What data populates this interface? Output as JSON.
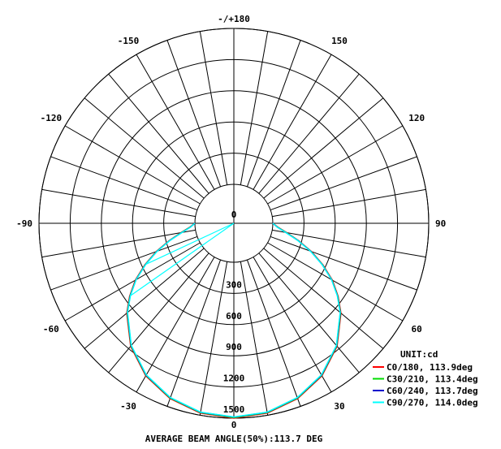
{
  "chart_data": {
    "type": "polar",
    "unit_label": "UNIT:cd",
    "bottom_caption": "AVERAGE BEAM ANGLE(50%):113.7 DEG",
    "angle_labels": [
      {
        "deg": 180,
        "text": "-/+180"
      },
      {
        "deg": 150,
        "text": "150"
      },
      {
        "deg": -150,
        "text": "-150"
      },
      {
        "deg": 120,
        "text": "120"
      },
      {
        "deg": -120,
        "text": "-120"
      },
      {
        "deg": 90,
        "text": "90"
      },
      {
        "deg": -90,
        "text": "-90"
      },
      {
        "deg": 60,
        "text": "60"
      },
      {
        "deg": -60,
        "text": "-60"
      },
      {
        "deg": 30,
        "text": "30"
      },
      {
        "deg": -30,
        "text": "-30"
      },
      {
        "deg": 0,
        "text": "0"
      }
    ],
    "radial_ticks": [
      {
        "value": 0,
        "text": "0"
      },
      {
        "value": 300,
        "text": "300"
      },
      {
        "value": 600,
        "text": "600"
      },
      {
        "value": 900,
        "text": "900"
      },
      {
        "value": 1200,
        "text": "1200"
      },
      {
        "value": 1500,
        "text": "1500"
      }
    ],
    "rmax": 1500,
    "angular_grid_step_deg": 10,
    "series": [
      {
        "name": "C0/180, 113.9deg",
        "color": "#ff0000",
        "angles_deg": [
          0,
          10,
          20,
          30,
          40,
          50,
          55,
          60,
          65,
          70,
          75,
          80,
          85,
          90
        ],
        "intensity_cd": [
          1500,
          1480,
          1420,
          1320,
          1170,
          970,
          850,
          720,
          570,
          420,
          270,
          140,
          50,
          0
        ]
      },
      {
        "name": "C30/210, 113.4deg",
        "color": "#00dd00",
        "angles_deg": [
          0,
          10,
          20,
          30,
          40,
          50,
          55,
          60,
          65,
          70,
          75,
          80,
          85,
          90
        ],
        "intensity_cd": [
          1495,
          1475,
          1415,
          1315,
          1165,
          965,
          845,
          715,
          565,
          415,
          265,
          135,
          45,
          0
        ]
      },
      {
        "name": "C60/240, 113.7deg",
        "color": "#0000cc",
        "angles_deg": [
          0,
          10,
          20,
          30,
          40,
          50,
          55,
          60,
          65,
          70,
          75,
          80,
          85,
          90
        ],
        "intensity_cd": [
          1490,
          1472,
          1412,
          1312,
          1162,
          962,
          842,
          712,
          562,
          412,
          262,
          132,
          44,
          0
        ]
      },
      {
        "name": "C90/270, 114.0deg",
        "color": "#00ffff",
        "angles_deg": [
          0,
          10,
          20,
          30,
          40,
          50,
          55,
          60,
          65,
          70,
          75,
          80,
          85,
          90
        ],
        "intensity_cd": [
          1488,
          1470,
          1410,
          1310,
          1160,
          960,
          840,
          710,
          560,
          410,
          260,
          130,
          43,
          0
        ]
      }
    ]
  }
}
